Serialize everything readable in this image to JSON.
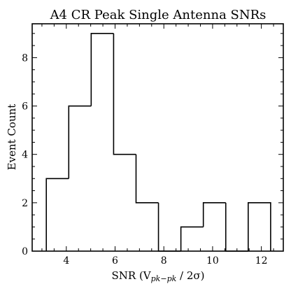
{
  "chart_data": {
    "type": "bar",
    "style": "step-histogram",
    "title": "A4 CR Peak Single Antenna SNRs",
    "xlabel": "SNR (V",
    "xlabel_sub": "pk−pk",
    "xlabel_tail": " / 2σ)",
    "ylabel": "Event Count",
    "xlim": [
      2.6,
      12.9
    ],
    "ylim": [
      0,
      9.4
    ],
    "x_ticks": [
      4,
      6,
      8,
      10,
      12
    ],
    "y_ticks": [
      0,
      2,
      4,
      6,
      8
    ],
    "grid": false,
    "bin_edges": [
      3.18,
      4.1,
      5.02,
      5.94,
      6.86,
      7.78,
      8.7,
      9.62,
      10.54,
      11.46,
      12.38
    ],
    "values": [
      3,
      6,
      9,
      4,
      2,
      0,
      1,
      2,
      0,
      2
    ],
    "colors": {
      "line": "#000000",
      "background": "#ffffff"
    }
  }
}
